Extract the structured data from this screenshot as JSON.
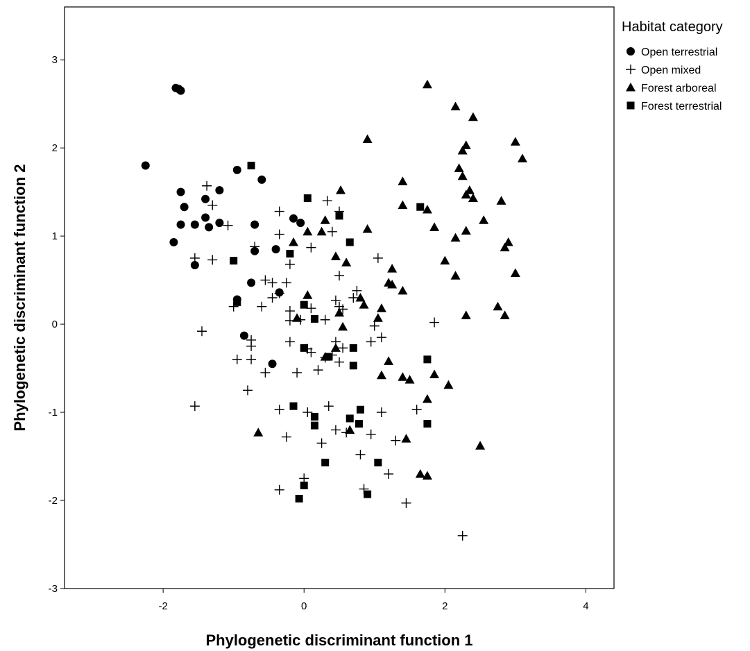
{
  "chart_data": {
    "type": "scatter",
    "xlabel": "Phylogenetic discriminant function 1",
    "ylabel": "Phylogenetic discriminant function 2",
    "xlim": [
      -3.4,
      4.4
    ],
    "ylim": [
      -3,
      3.6
    ],
    "xticks": [
      -2,
      0,
      2,
      4
    ],
    "yticks": [
      -3,
      -2,
      -1,
      0,
      1,
      2,
      3
    ],
    "grid": false,
    "legend": {
      "title": "Habitat category",
      "position": "right"
    },
    "series": [
      {
        "name": "Open terrestrial",
        "marker": "circle",
        "points": [
          [
            -1.82,
            2.68
          ],
          [
            -1.78,
            2.67
          ],
          [
            -1.75,
            2.65
          ],
          [
            -2.25,
            1.8
          ],
          [
            -1.75,
            1.5
          ],
          [
            -1.7,
            1.33
          ],
          [
            -1.75,
            1.13
          ],
          [
            -1.85,
            0.93
          ],
          [
            -1.55,
            1.13
          ],
          [
            -1.4,
            1.42
          ],
          [
            -1.4,
            1.21
          ],
          [
            -1.35,
            1.1
          ],
          [
            -1.2,
            1.52
          ],
          [
            -1.2,
            1.15
          ],
          [
            -0.95,
            1.75
          ],
          [
            -0.6,
            1.64
          ],
          [
            -0.7,
            1.13
          ],
          [
            -0.7,
            0.83
          ],
          [
            -0.4,
            0.85
          ],
          [
            -0.15,
            1.2
          ],
          [
            -0.05,
            1.15
          ],
          [
            -0.75,
            0.47
          ],
          [
            -0.35,
            0.36
          ],
          [
            -0.95,
            0.28
          ],
          [
            -0.85,
            -0.13
          ],
          [
            -0.45,
            -0.45
          ],
          [
            -1.55,
            0.67
          ]
        ]
      },
      {
        "name": "Open mixed",
        "marker": "plus",
        "points": [
          [
            -1.38,
            1.57
          ],
          [
            -1.3,
            1.35
          ],
          [
            -1.08,
            1.12
          ],
          [
            -1.55,
            0.75
          ],
          [
            -1.3,
            0.73
          ],
          [
            -0.7,
            0.88
          ],
          [
            -0.35,
            1.28
          ],
          [
            -0.35,
            1.02
          ],
          [
            -0.2,
            0.68
          ],
          [
            0.1,
            0.87
          ],
          [
            0.33,
            1.4
          ],
          [
            0.5,
            1.28
          ],
          [
            0.4,
            1.05
          ],
          [
            -0.55,
            0.5
          ],
          [
            -0.45,
            0.47
          ],
          [
            -0.25,
            0.47
          ],
          [
            -0.45,
            0.3
          ],
          [
            -0.35,
            0.35
          ],
          [
            -0.6,
            0.2
          ],
          [
            -1.0,
            0.2
          ],
          [
            -0.2,
            0.15
          ],
          [
            0.1,
            0.18
          ],
          [
            -0.05,
            0.05
          ],
          [
            0.5,
            0.55
          ],
          [
            0.45,
            0.27
          ],
          [
            0.5,
            0.2
          ],
          [
            0.55,
            0.17
          ],
          [
            0.75,
            0.38
          ],
          [
            0.7,
            0.3
          ],
          [
            1.05,
            0.75
          ],
          [
            -1.45,
            -0.08
          ],
          [
            -0.75,
            -0.18
          ],
          [
            -0.75,
            -0.25
          ],
          [
            -0.2,
            -0.2
          ],
          [
            0.05,
            -0.28
          ],
          [
            0.1,
            -0.32
          ],
          [
            0.4,
            -0.35
          ],
          [
            0.45,
            -0.2
          ],
          [
            0.55,
            -0.27
          ],
          [
            0.95,
            -0.2
          ],
          [
            1.1,
            -0.15
          ],
          [
            1.85,
            0.02
          ],
          [
            -0.95,
            -0.4
          ],
          [
            -0.75,
            -0.4
          ],
          [
            -0.55,
            -0.55
          ],
          [
            -0.1,
            -0.55
          ],
          [
            0.2,
            -0.52
          ],
          [
            0.3,
            -0.38
          ],
          [
            0.5,
            -0.43
          ],
          [
            -1.55,
            -0.93
          ],
          [
            -0.8,
            -0.75
          ],
          [
            -0.35,
            -0.97
          ],
          [
            0.35,
            -0.93
          ],
          [
            0.05,
            -1.0
          ],
          [
            0.45,
            -1.2
          ],
          [
            0.6,
            -1.23
          ],
          [
            0.95,
            -1.25
          ],
          [
            1.1,
            -1.0
          ],
          [
            1.6,
            -0.97
          ],
          [
            0.25,
            -1.35
          ],
          [
            -0.25,
            -1.28
          ],
          [
            1.3,
            -1.32
          ],
          [
            0.8,
            -1.48
          ],
          [
            1.2,
            -1.7
          ],
          [
            0.0,
            -1.75
          ],
          [
            -0.35,
            -1.88
          ],
          [
            0.85,
            -1.87
          ],
          [
            1.45,
            -2.03
          ],
          [
            2.25,
            -2.4
          ],
          [
            1.0,
            -0.02
          ],
          [
            0.3,
            0.05
          ],
          [
            -0.2,
            0.04
          ]
        ]
      },
      {
        "name": "Forest arboreal",
        "marker": "triangle",
        "points": [
          [
            1.75,
            2.72
          ],
          [
            2.15,
            2.47
          ],
          [
            2.4,
            2.35
          ],
          [
            0.9,
            2.1
          ],
          [
            2.3,
            2.03
          ],
          [
            2.25,
            1.97
          ],
          [
            3.0,
            2.07
          ],
          [
            3.1,
            1.88
          ],
          [
            2.2,
            1.77
          ],
          [
            2.25,
            1.68
          ],
          [
            1.4,
            1.62
          ],
          [
            0.52,
            1.52
          ],
          [
            2.35,
            1.52
          ],
          [
            2.3,
            1.47
          ],
          [
            2.4,
            1.43
          ],
          [
            2.8,
            1.4
          ],
          [
            1.4,
            1.35
          ],
          [
            1.75,
            1.3
          ],
          [
            2.55,
            1.18
          ],
          [
            1.85,
            1.1
          ],
          [
            0.9,
            1.08
          ],
          [
            2.3,
            1.06
          ],
          [
            2.15,
            0.98
          ],
          [
            0.3,
            1.18
          ],
          [
            0.25,
            1.05
          ],
          [
            -0.15,
            0.93
          ],
          [
            0.05,
            1.05
          ],
          [
            2.9,
            0.93
          ],
          [
            2.85,
            0.87
          ],
          [
            0.45,
            0.77
          ],
          [
            0.6,
            0.7
          ],
          [
            2.0,
            0.72
          ],
          [
            1.25,
            0.63
          ],
          [
            2.15,
            0.55
          ],
          [
            3.0,
            0.58
          ],
          [
            1.2,
            0.47
          ],
          [
            1.25,
            0.45
          ],
          [
            1.4,
            0.38
          ],
          [
            0.8,
            0.3
          ],
          [
            0.05,
            0.33
          ],
          [
            0.85,
            0.22
          ],
          [
            1.1,
            0.18
          ],
          [
            -0.1,
            0.07
          ],
          [
            0.5,
            0.13
          ],
          [
            1.05,
            0.07
          ],
          [
            2.75,
            0.2
          ],
          [
            2.3,
            0.1
          ],
          [
            2.85,
            0.1
          ],
          [
            0.55,
            -0.03
          ],
          [
            0.45,
            -0.27
          ],
          [
            0.3,
            -0.37
          ],
          [
            1.2,
            -0.42
          ],
          [
            1.1,
            -0.58
          ],
          [
            1.4,
            -0.6
          ],
          [
            1.5,
            -0.63
          ],
          [
            1.85,
            -0.57
          ],
          [
            2.05,
            -0.69
          ],
          [
            1.75,
            -0.85
          ],
          [
            -0.65,
            -1.23
          ],
          [
            0.65,
            -1.2
          ],
          [
            1.45,
            -1.3
          ],
          [
            2.5,
            -1.38
          ],
          [
            1.65,
            -1.7
          ],
          [
            1.75,
            -1.72
          ]
        ]
      },
      {
        "name": "Forest terrestrial",
        "marker": "square",
        "points": [
          [
            -0.75,
            1.8
          ],
          [
            0.05,
            1.43
          ],
          [
            0.5,
            1.23
          ],
          [
            1.65,
            1.33
          ],
          [
            -1.0,
            0.72
          ],
          [
            -0.2,
            0.8
          ],
          [
            0.65,
            0.93
          ],
          [
            -0.95,
            0.25
          ],
          [
            0.0,
            0.22
          ],
          [
            0.15,
            0.06
          ],
          [
            0.0,
            -0.27
          ],
          [
            0.7,
            -0.27
          ],
          [
            0.35,
            -0.37
          ],
          [
            0.7,
            -0.47
          ],
          [
            1.75,
            -0.4
          ],
          [
            -0.15,
            -0.93
          ],
          [
            0.15,
            -1.05
          ],
          [
            0.15,
            -1.15
          ],
          [
            0.65,
            -1.07
          ],
          [
            0.8,
            -0.97
          ],
          [
            0.78,
            -1.13
          ],
          [
            1.75,
            -1.13
          ],
          [
            0.3,
            -1.57
          ],
          [
            1.05,
            -1.57
          ],
          [
            0.0,
            -1.83
          ],
          [
            -0.07,
            -1.98
          ],
          [
            0.9,
            -1.93
          ]
        ]
      }
    ]
  }
}
